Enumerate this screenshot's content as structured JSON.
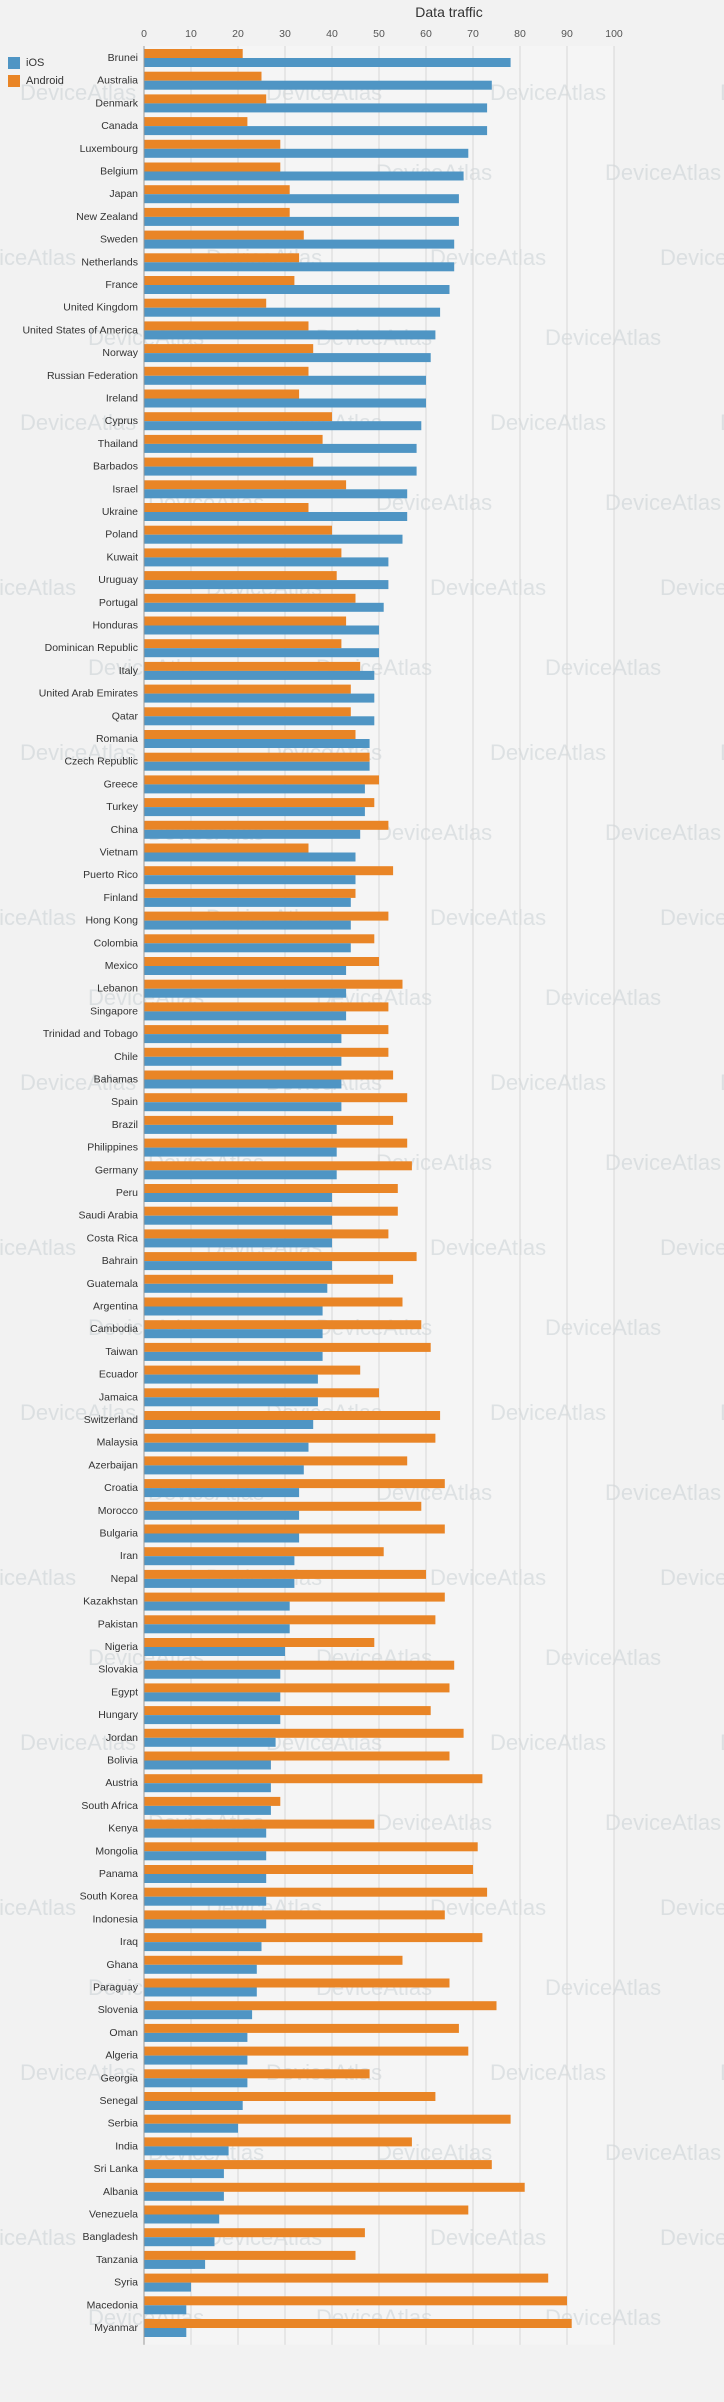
{
  "chart_data": {
    "type": "bar",
    "orientation": "horizontal",
    "title": "Data traffic",
    "xlim": [
      0,
      100
    ],
    "xticks": [
      0,
      10,
      20,
      30,
      40,
      50,
      60,
      70,
      80,
      90,
      100
    ],
    "grid": true,
    "legend_position": "top-left",
    "watermark": "DeviceAtlas",
    "colors": {
      "ios": "#4f95c4",
      "android": "#e98526"
    },
    "categories": [
      "Brunei",
      "Australia",
      "Denmark",
      "Canada",
      "Luxembourg",
      "Belgium",
      "Japan",
      "New Zealand",
      "Sweden",
      "Netherlands",
      "France",
      "United Kingdom",
      "United States of America",
      "Norway",
      "Russian Federation",
      "Ireland",
      "Cyprus",
      "Thailand",
      "Barbados",
      "Israel",
      "Ukraine",
      "Poland",
      "Kuwait",
      "Uruguay",
      "Portugal",
      "Honduras",
      "Dominican Republic",
      "Italy",
      "United Arab Emirates",
      "Qatar",
      "Romania",
      "Czech Republic",
      "Greece",
      "Turkey",
      "China",
      "Vietnam",
      "Puerto Rico",
      "Finland",
      "Hong Kong",
      "Colombia",
      "Mexico",
      "Lebanon",
      "Singapore",
      "Trinidad and Tobago",
      "Chile",
      "Bahamas",
      "Spain",
      "Brazil",
      "Philippines",
      "Germany",
      "Peru",
      "Saudi Arabia",
      "Costa Rica",
      "Bahrain",
      "Guatemala",
      "Argentina",
      "Cambodia",
      "Taiwan",
      "Ecuador",
      "Jamaica",
      "Switzerland",
      "Malaysia",
      "Azerbaijan",
      "Croatia",
      "Morocco",
      "Bulgaria",
      "Iran",
      "Nepal",
      "Kazakhstan",
      "Pakistan",
      "Nigeria",
      "Slovakia",
      "Egypt",
      "Hungary",
      "Jordan",
      "Bolivia",
      "Austria",
      "South Africa",
      "Kenya",
      "Mongolia",
      "Panama",
      "South Korea",
      "Indonesia",
      "Iraq",
      "Ghana",
      "Paraguay",
      "Slovenia",
      "Oman",
      "Algeria",
      "Georgia",
      "Senegal",
      "Serbia",
      "India",
      "Sri Lanka",
      "Albania",
      "Venezuela",
      "Bangladesh",
      "Tanzania",
      "Syria",
      "Macedonia",
      "Myanmar"
    ],
    "series": [
      {
        "name": "iOS",
        "values": [
          78,
          74,
          73,
          73,
          69,
          68,
          67,
          67,
          66,
          66,
          65,
          63,
          62,
          61,
          60,
          60,
          59,
          58,
          58,
          56,
          56,
          55,
          52,
          52,
          51,
          50,
          50,
          49,
          49,
          49,
          48,
          48,
          47,
          47,
          46,
          45,
          45,
          44,
          44,
          44,
          43,
          43,
          43,
          42,
          42,
          42,
          42,
          41,
          41,
          41,
          40,
          40,
          40,
          40,
          39,
          38,
          38,
          38,
          37,
          37,
          36,
          35,
          34,
          33,
          33,
          33,
          32,
          32,
          31,
          31,
          30,
          29,
          29,
          29,
          28,
          27,
          27,
          27,
          26,
          26,
          26,
          26,
          26,
          25,
          24,
          24,
          23,
          22,
          22,
          22,
          21,
          20,
          18,
          17,
          17,
          16,
          15,
          13,
          10,
          9,
          9
        ]
      },
      {
        "name": "Android",
        "values": [
          21,
          25,
          26,
          22,
          29,
          29,
          31,
          31,
          34,
          33,
          32,
          26,
          35,
          36,
          35,
          33,
          40,
          38,
          36,
          43,
          35,
          40,
          42,
          41,
          45,
          43,
          42,
          46,
          44,
          44,
          45,
          48,
          50,
          49,
          52,
          35,
          53,
          45,
          52,
          49,
          50,
          55,
          52,
          52,
          52,
          53,
          56,
          53,
          56,
          57,
          54,
          54,
          52,
          58,
          53,
          55,
          59,
          61,
          46,
          50,
          63,
          62,
          56,
          64,
          59,
          64,
          51,
          60,
          64,
          62,
          49,
          66,
          65,
          61,
          68,
          65,
          72,
          29,
          49,
          71,
          70,
          73,
          64,
          72,
          55,
          65,
          75,
          67,
          69,
          48,
          62,
          78,
          57,
          74,
          81,
          69,
          47,
          45,
          86,
          90,
          91
        ]
      }
    ]
  }
}
